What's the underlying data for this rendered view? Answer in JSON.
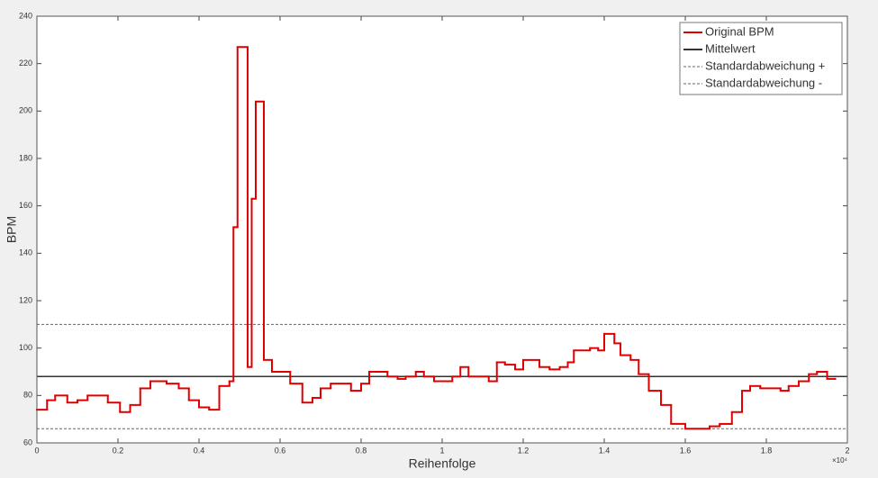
{
  "chart_data": {
    "type": "step",
    "xlabel": "Reihenfolge",
    "ylabel": "BPM",
    "x_exponent_label": "×10⁴",
    "xlim": [
      0,
      20000
    ],
    "ylim": [
      60,
      240
    ],
    "xticks": [
      0,
      {
        "value": 2000,
        "label": "0.2"
      },
      {
        "value": 4000,
        "label": "0.4"
      },
      {
        "value": 6000,
        "label": "0.6"
      },
      {
        "value": 8000,
        "label": "0.8"
      },
      {
        "value": 10000,
        "label": "1"
      },
      {
        "value": 12000,
        "label": "1.2"
      },
      {
        "value": 14000,
        "label": "1.4"
      },
      {
        "value": 16000,
        "label": "1.6"
      },
      {
        "value": 18000,
        "label": "1.8"
      },
      {
        "value": 20000,
        "label": "2"
      }
    ],
    "yticks": [
      60,
      80,
      100,
      120,
      140,
      160,
      180,
      200,
      220,
      240
    ],
    "legend": "top-right",
    "series": [
      {
        "name": "Original BPM",
        "color": "#e00000",
        "x": [
          0,
          250,
          450,
          750,
          1000,
          1250,
          1750,
          2050,
          2300,
          2550,
          2800,
          3200,
          3500,
          3750,
          4000,
          4250,
          4500,
          4750,
          4850,
          4950,
          5200,
          5300,
          5400,
          5600,
          5800,
          6250,
          6550,
          6800,
          7000,
          7250,
          7750,
          8000,
          8200,
          8650,
          8900,
          9100,
          9350,
          9550,
          9800,
          10250,
          10450,
          10650,
          11150,
          11350,
          11550,
          11800,
          12000,
          12400,
          12650,
          12900,
          13100,
          13250,
          13650,
          13850,
          14000,
          14250,
          14400,
          14650,
          14850,
          15100,
          15400,
          15650,
          16000,
          16600,
          16850,
          17150,
          17400,
          17600,
          17850,
          18350,
          18550,
          18800,
          19050,
          19250,
          19500,
          19700
        ],
        "values": [
          74,
          78,
          80,
          77,
          78,
          80,
          77,
          73,
          76,
          83,
          86,
          85,
          83,
          78,
          75,
          74,
          84,
          86,
          151,
          227,
          92,
          163,
          204,
          95,
          90,
          85,
          77,
          79,
          83,
          85,
          82,
          85,
          90,
          88,
          87,
          88,
          90,
          88,
          86,
          88,
          92,
          88,
          86,
          94,
          93,
          91,
          95,
          92,
          91,
          92,
          94,
          99,
          100,
          99,
          106,
          102,
          97,
          95,
          89,
          82,
          76,
          68,
          66,
          67,
          68,
          73,
          82,
          84,
          83,
          82,
          84,
          86,
          89,
          90,
          87,
          87
        ]
      }
    ],
    "reference_lines": [
      {
        "name": "Mittelwert",
        "value": 88,
        "color": "#333333",
        "style": "solid"
      },
      {
        "name": "Standardabweichung +",
        "value": 110,
        "color": "#666666",
        "style": "dotted"
      },
      {
        "name": "Standardabweichung -",
        "value": 66,
        "color": "#666666",
        "style": "dotted"
      }
    ]
  }
}
